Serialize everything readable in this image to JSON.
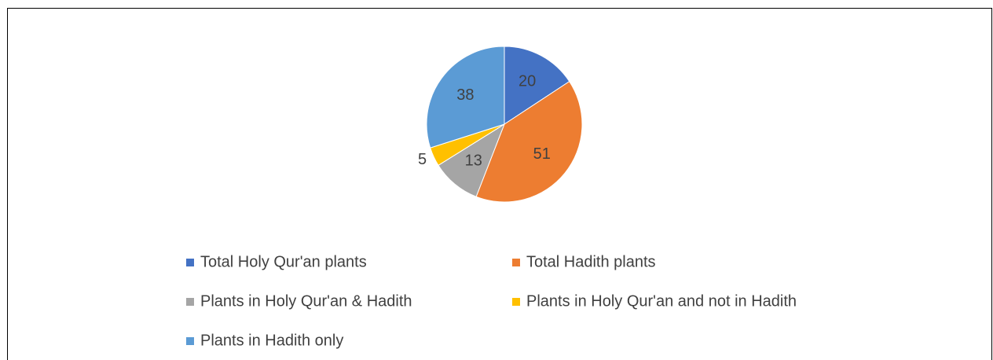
{
  "chart_data": {
    "type": "pie",
    "categories": [
      "Total Holy Qur'an plants",
      "Total Hadith plants",
      "Plants in Holy Qur'an & Hadith",
      "Plants in Holy Qur'an and not in Hadith",
      "Plants in Hadith only"
    ],
    "values": [
      20,
      51,
      13,
      5,
      38
    ],
    "colors": [
      "#4472c4",
      "#ed7d31",
      "#a5a5a5",
      "#ffc000",
      "#5b9bd5"
    ],
    "legend": "bottom"
  }
}
